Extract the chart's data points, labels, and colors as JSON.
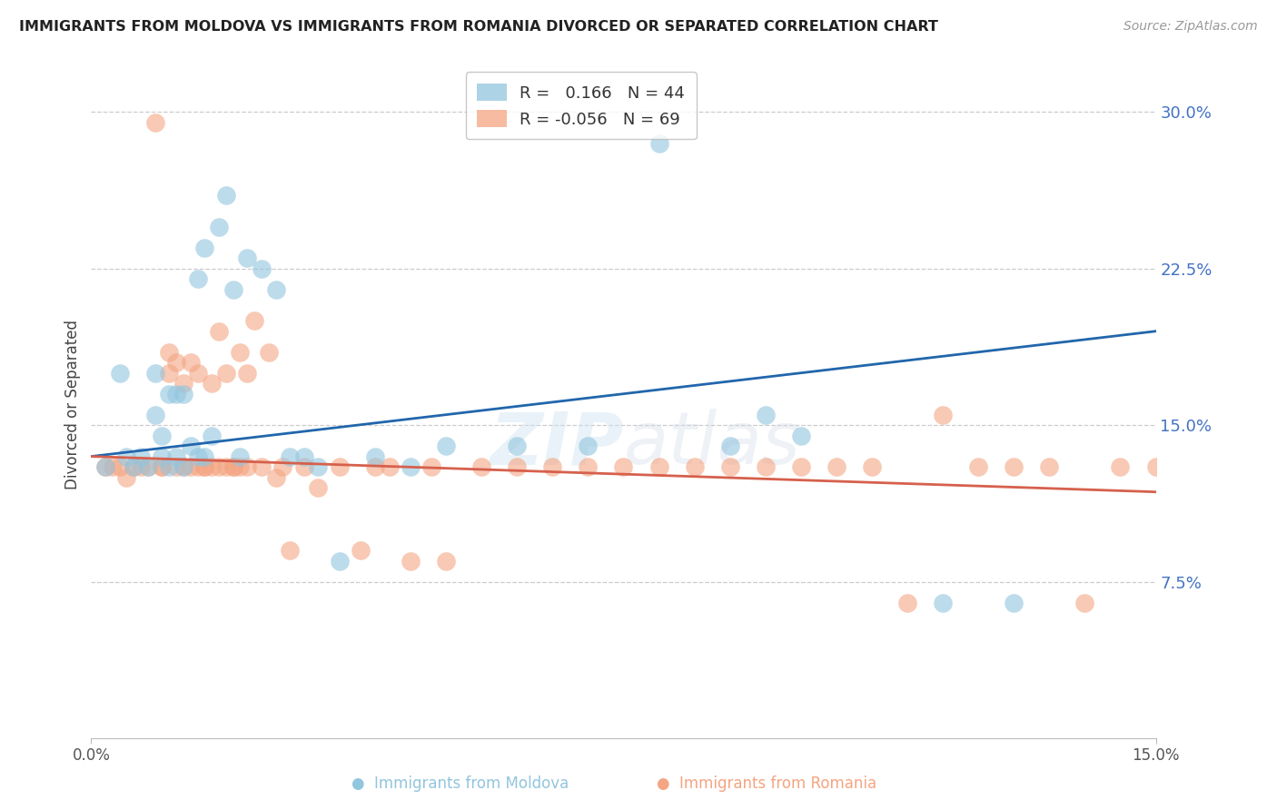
{
  "title": "IMMIGRANTS FROM MOLDOVA VS IMMIGRANTS FROM ROMANIA DIVORCED OR SEPARATED CORRELATION CHART",
  "source": "Source: ZipAtlas.com",
  "ylabel": "Divorced or Separated",
  "xlim": [
    0.0,
    0.15
  ],
  "ylim": [
    0.0,
    0.32
  ],
  "moldova_color": "#92c5de",
  "romania_color": "#f4a582",
  "line_moldova_color": "#2166ac",
  "line_romania_color": "#d6604d",
  "legend_r_moldova": "R =   0.166",
  "legend_n_moldova": "N = 44",
  "legend_r_romania": "R = -0.056",
  "legend_n_romania": "N = 69",
  "mol_line_y0": 0.135,
  "mol_line_y1": 0.195,
  "rom_line_y0": 0.135,
  "rom_line_y1": 0.118,
  "moldova_x": [
    0.002,
    0.004,
    0.005,
    0.006,
    0.007,
    0.008,
    0.009,
    0.009,
    0.01,
    0.01,
    0.011,
    0.011,
    0.012,
    0.012,
    0.013,
    0.013,
    0.014,
    0.015,
    0.015,
    0.016,
    0.016,
    0.017,
    0.018,
    0.019,
    0.02,
    0.021,
    0.022,
    0.024,
    0.026,
    0.028,
    0.03,
    0.032,
    0.035,
    0.04,
    0.045,
    0.05,
    0.06,
    0.07,
    0.08,
    0.09,
    0.095,
    0.1,
    0.12,
    0.13
  ],
  "moldova_y": [
    0.13,
    0.175,
    0.135,
    0.13,
    0.135,
    0.13,
    0.155,
    0.175,
    0.135,
    0.145,
    0.13,
    0.165,
    0.135,
    0.165,
    0.13,
    0.165,
    0.14,
    0.135,
    0.22,
    0.135,
    0.235,
    0.145,
    0.245,
    0.26,
    0.215,
    0.135,
    0.23,
    0.225,
    0.215,
    0.135,
    0.135,
    0.13,
    0.085,
    0.135,
    0.13,
    0.14,
    0.14,
    0.14,
    0.285,
    0.14,
    0.155,
    0.145,
    0.065,
    0.065
  ],
  "romania_x": [
    0.002,
    0.003,
    0.004,
    0.005,
    0.006,
    0.007,
    0.008,
    0.009,
    0.01,
    0.01,
    0.011,
    0.011,
    0.012,
    0.012,
    0.013,
    0.013,
    0.014,
    0.014,
    0.015,
    0.015,
    0.016,
    0.016,
    0.017,
    0.017,
    0.018,
    0.018,
    0.019,
    0.019,
    0.02,
    0.02,
    0.021,
    0.021,
    0.022,
    0.022,
    0.023,
    0.024,
    0.025,
    0.026,
    0.027,
    0.028,
    0.03,
    0.032,
    0.035,
    0.038,
    0.04,
    0.042,
    0.045,
    0.048,
    0.05,
    0.055,
    0.06,
    0.065,
    0.07,
    0.075,
    0.08,
    0.085,
    0.09,
    0.095,
    0.1,
    0.105,
    0.11,
    0.115,
    0.12,
    0.125,
    0.13,
    0.135,
    0.14,
    0.145,
    0.15
  ],
  "romania_y": [
    0.13,
    0.13,
    0.13,
    0.125,
    0.13,
    0.13,
    0.13,
    0.295,
    0.13,
    0.13,
    0.175,
    0.185,
    0.18,
    0.13,
    0.13,
    0.17,
    0.18,
    0.13,
    0.175,
    0.13,
    0.13,
    0.13,
    0.17,
    0.13,
    0.195,
    0.13,
    0.175,
    0.13,
    0.13,
    0.13,
    0.185,
    0.13,
    0.175,
    0.13,
    0.2,
    0.13,
    0.185,
    0.125,
    0.13,
    0.09,
    0.13,
    0.12,
    0.13,
    0.09,
    0.13,
    0.13,
    0.085,
    0.13,
    0.085,
    0.13,
    0.13,
    0.13,
    0.13,
    0.13,
    0.13,
    0.13,
    0.13,
    0.13,
    0.13,
    0.13,
    0.13,
    0.065,
    0.155,
    0.13,
    0.13,
    0.13,
    0.065,
    0.13,
    0.13
  ]
}
